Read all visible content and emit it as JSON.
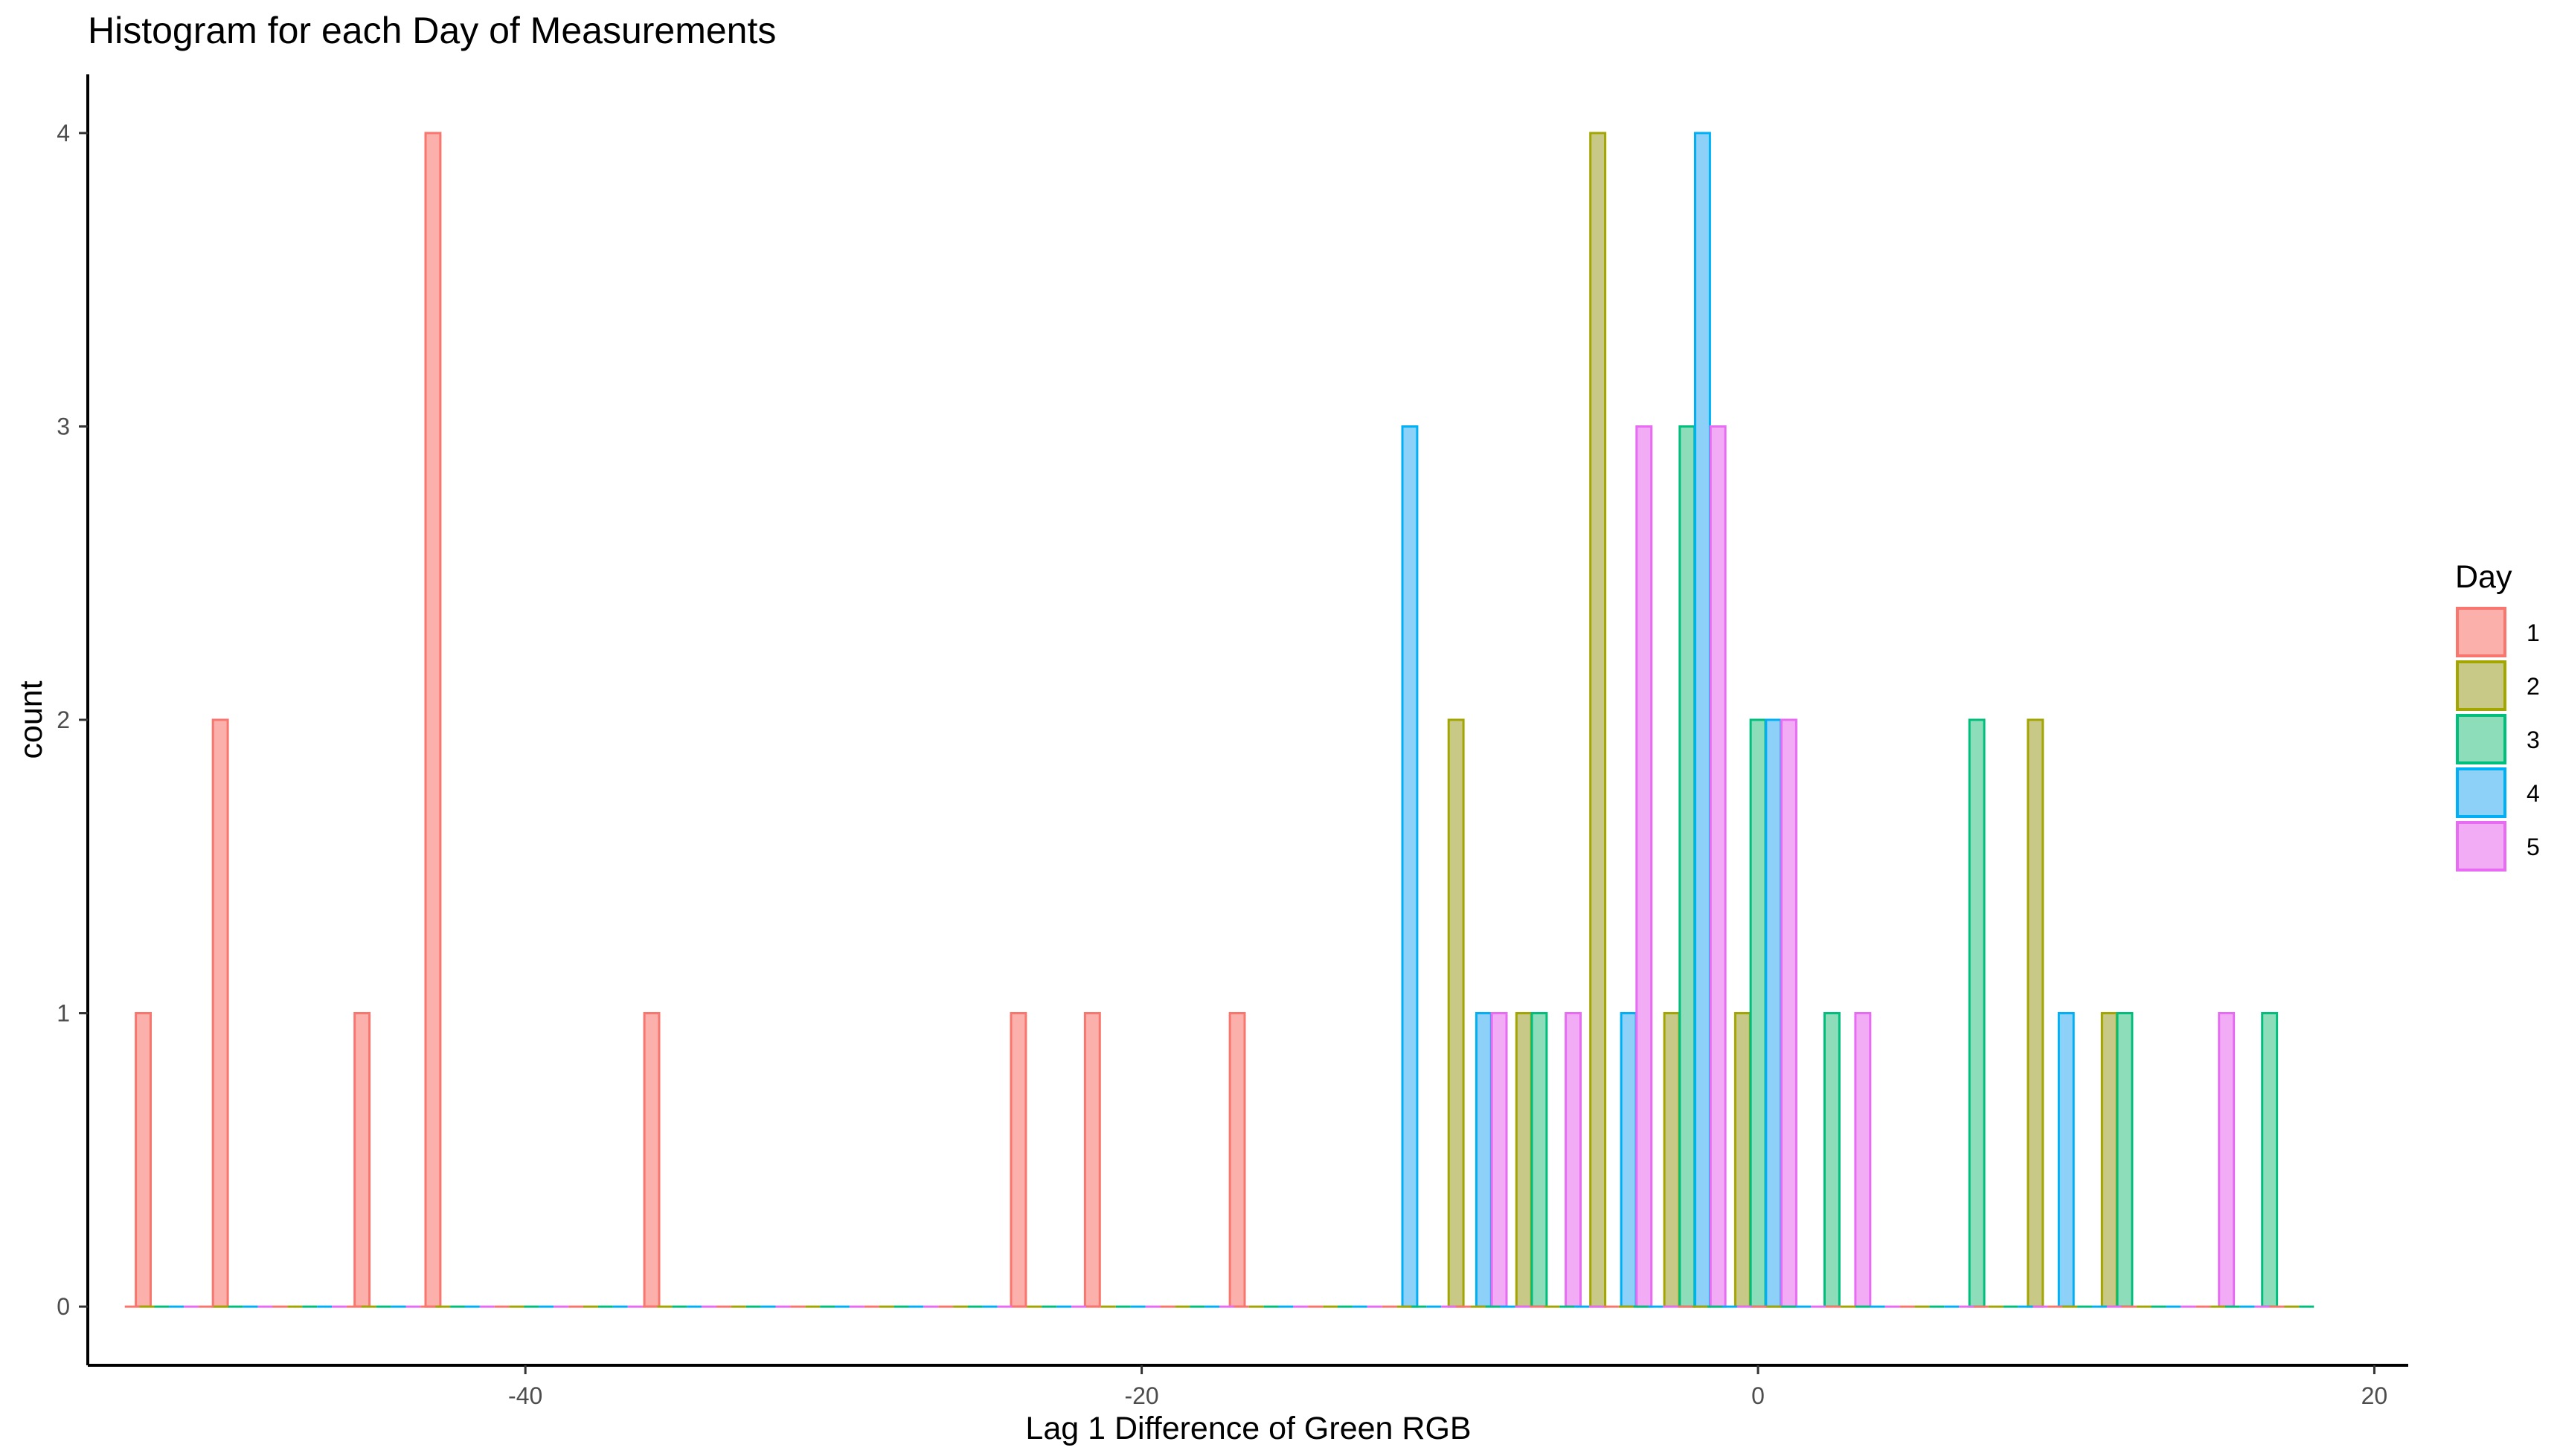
{
  "chart_data": {
    "type": "bar",
    "title": "Histogram for each Day of Measurements",
    "xlabel": "Lag 1 Difference of Green RGB",
    "ylabel": "count",
    "xlim": [
      -54.2,
      21.1
    ],
    "ylim": [
      -0.2,
      4.2
    ],
    "x_ticks": [
      -40,
      -20,
      0,
      20
    ],
    "x_tick_labels": [
      "-40",
      "-20",
      "0",
      "20"
    ],
    "y_ticks": [
      0,
      1,
      2,
      3,
      4
    ],
    "y_tick_labels": [
      "0",
      "1",
      "2",
      "3",
      "4"
    ],
    "grid": false,
    "legend_title": "Day",
    "legend_position": "right",
    "bin_width": 2.4,
    "x_start": -53.0,
    "x_end": 17.8,
    "series": [
      {
        "name": "1",
        "color": "#F8766D",
        "fill": "#FBB0AB",
        "bins": [
          {
            "x": -52.4,
            "count": 1
          },
          {
            "x": -49.9,
            "count": 2
          },
          {
            "x": -45.3,
            "count": 1
          },
          {
            "x": -43.0,
            "count": 4
          },
          {
            "x": -35.9,
            "count": 1
          },
          {
            "x": -24.0,
            "count": 1
          },
          {
            "x": -21.6,
            "count": 1
          },
          {
            "x": -16.9,
            "count": 1
          }
        ]
      },
      {
        "name": "2",
        "color": "#A3A500",
        "fill": "#C9C987",
        "bins": [
          {
            "x": -9.8,
            "count": 2
          },
          {
            "x": -7.6,
            "count": 1
          },
          {
            "x": -5.2,
            "count": 4
          },
          {
            "x": -2.8,
            "count": 1
          },
          {
            "x": -0.5,
            "count": 1
          },
          {
            "x": 9.0,
            "count": 2
          },
          {
            "x": 11.4,
            "count": 1
          }
        ]
      },
      {
        "name": "3",
        "color": "#00BF7D",
        "fill": "#8EDDBA",
        "bins": [
          {
            "x": -7.1,
            "count": 1
          },
          {
            "x": -2.3,
            "count": 3
          },
          {
            "x": 0.0,
            "count": 2
          },
          {
            "x": 2.4,
            "count": 1
          },
          {
            "x": 7.1,
            "count": 2
          },
          {
            "x": 11.9,
            "count": 1
          },
          {
            "x": 16.6,
            "count": 1
          }
        ]
      },
      {
        "name": "4",
        "color": "#00B0F6",
        "fill": "#8DD1F8",
        "bins": [
          {
            "x": -11.3,
            "count": 3
          },
          {
            "x": -8.9,
            "count": 1
          },
          {
            "x": -4.2,
            "count": 1
          },
          {
            "x": -1.8,
            "count": 4
          },
          {
            "x": 0.5,
            "count": 2
          },
          {
            "x": 10.0,
            "count": 1
          }
        ]
      },
      {
        "name": "5",
        "color": "#E76BF3",
        "fill": "#F2ACF6",
        "bins": [
          {
            "x": -8.4,
            "count": 1
          },
          {
            "x": -6.0,
            "count": 1
          },
          {
            "x": -3.7,
            "count": 3
          },
          {
            "x": -1.3,
            "count": 3
          },
          {
            "x": 1.0,
            "count": 2
          },
          {
            "x": 3.4,
            "count": 1
          },
          {
            "x": 15.2,
            "count": 1
          }
        ]
      }
    ]
  }
}
